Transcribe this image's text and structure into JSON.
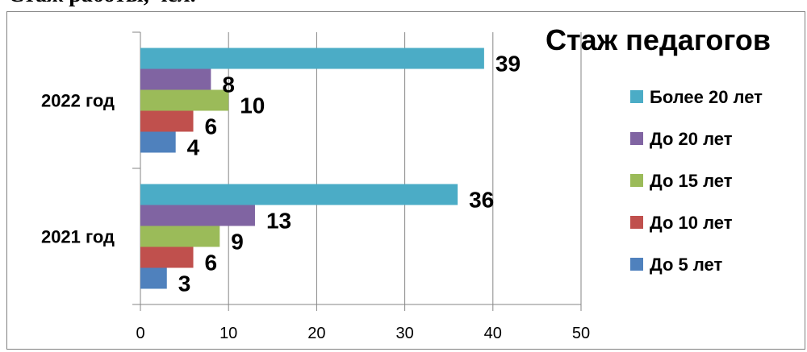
{
  "heading": "Стаж работы, чел.",
  "chart_data": {
    "type": "bar",
    "orientation": "horizontal",
    "title": "Стаж педагогов",
    "categories": [
      "2021 год",
      "2022 год"
    ],
    "series": [
      {
        "name": "До 5 лет",
        "values": [
          3,
          4
        ],
        "color": "#4f81bd"
      },
      {
        "name": "До 10 лет",
        "values": [
          6,
          6
        ],
        "color": "#c0504d"
      },
      {
        "name": "До 15 лет",
        "values": [
          9,
          10
        ],
        "color": "#9bbb59"
      },
      {
        "name": "До 20 лет",
        "values": [
          13,
          8
        ],
        "color": "#8064a2"
      },
      {
        "name": "Более 20 лет",
        "values": [
          36,
          39
        ],
        "color": "#4bacc6"
      }
    ],
    "xlim": [
      0,
      50
    ],
    "xticks": [
      0,
      10,
      20,
      30,
      40,
      50
    ],
    "grid": true,
    "legend_position": "right",
    "legend_order": [
      "Более 20 лет",
      "До 20 лет",
      "До 15 лет",
      "До 10 лет",
      "До 5 лет"
    ]
  }
}
